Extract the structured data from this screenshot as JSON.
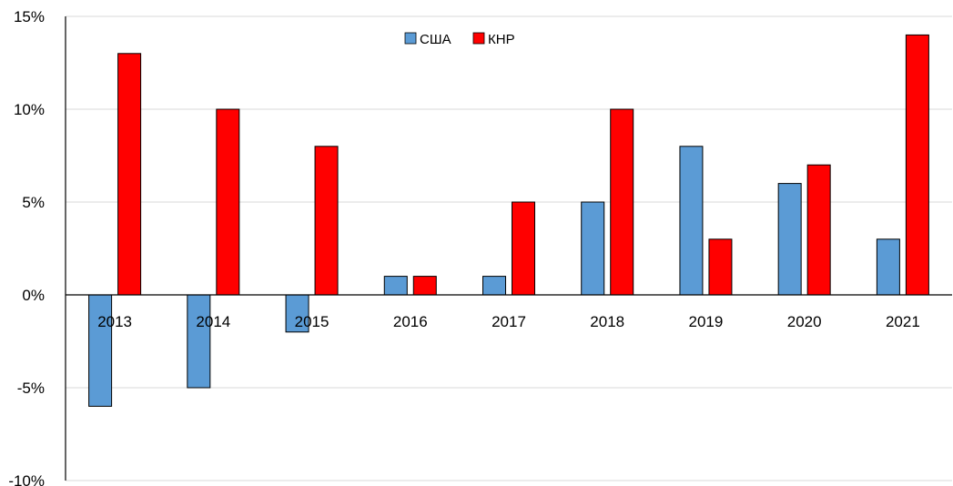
{
  "chart_data": {
    "type": "bar",
    "title": "",
    "xlabel": "",
    "ylabel": "",
    "categories": [
      "2013",
      "2014",
      "2015",
      "2016",
      "2017",
      "2018",
      "2019",
      "2020",
      "2021"
    ],
    "series": [
      {
        "name": "США",
        "color": "#5b9bd5",
        "values": [
          -6,
          -5,
          -2,
          1,
          1,
          5,
          8,
          6,
          3
        ]
      },
      {
        "name": "КНР",
        "color": "#ff0000",
        "values": [
          13,
          10,
          8,
          1,
          5,
          10,
          3,
          7,
          14
        ]
      }
    ],
    "ylim": [
      -10,
      15
    ],
    "yticks": [
      -10,
      -5,
      0,
      5,
      10,
      15
    ],
    "ytick_labels": [
      "-10%",
      "-5%",
      "0%",
      "5%",
      "10%",
      "15%"
    ],
    "unit": "%",
    "grid": true,
    "legend": "top-center"
  }
}
